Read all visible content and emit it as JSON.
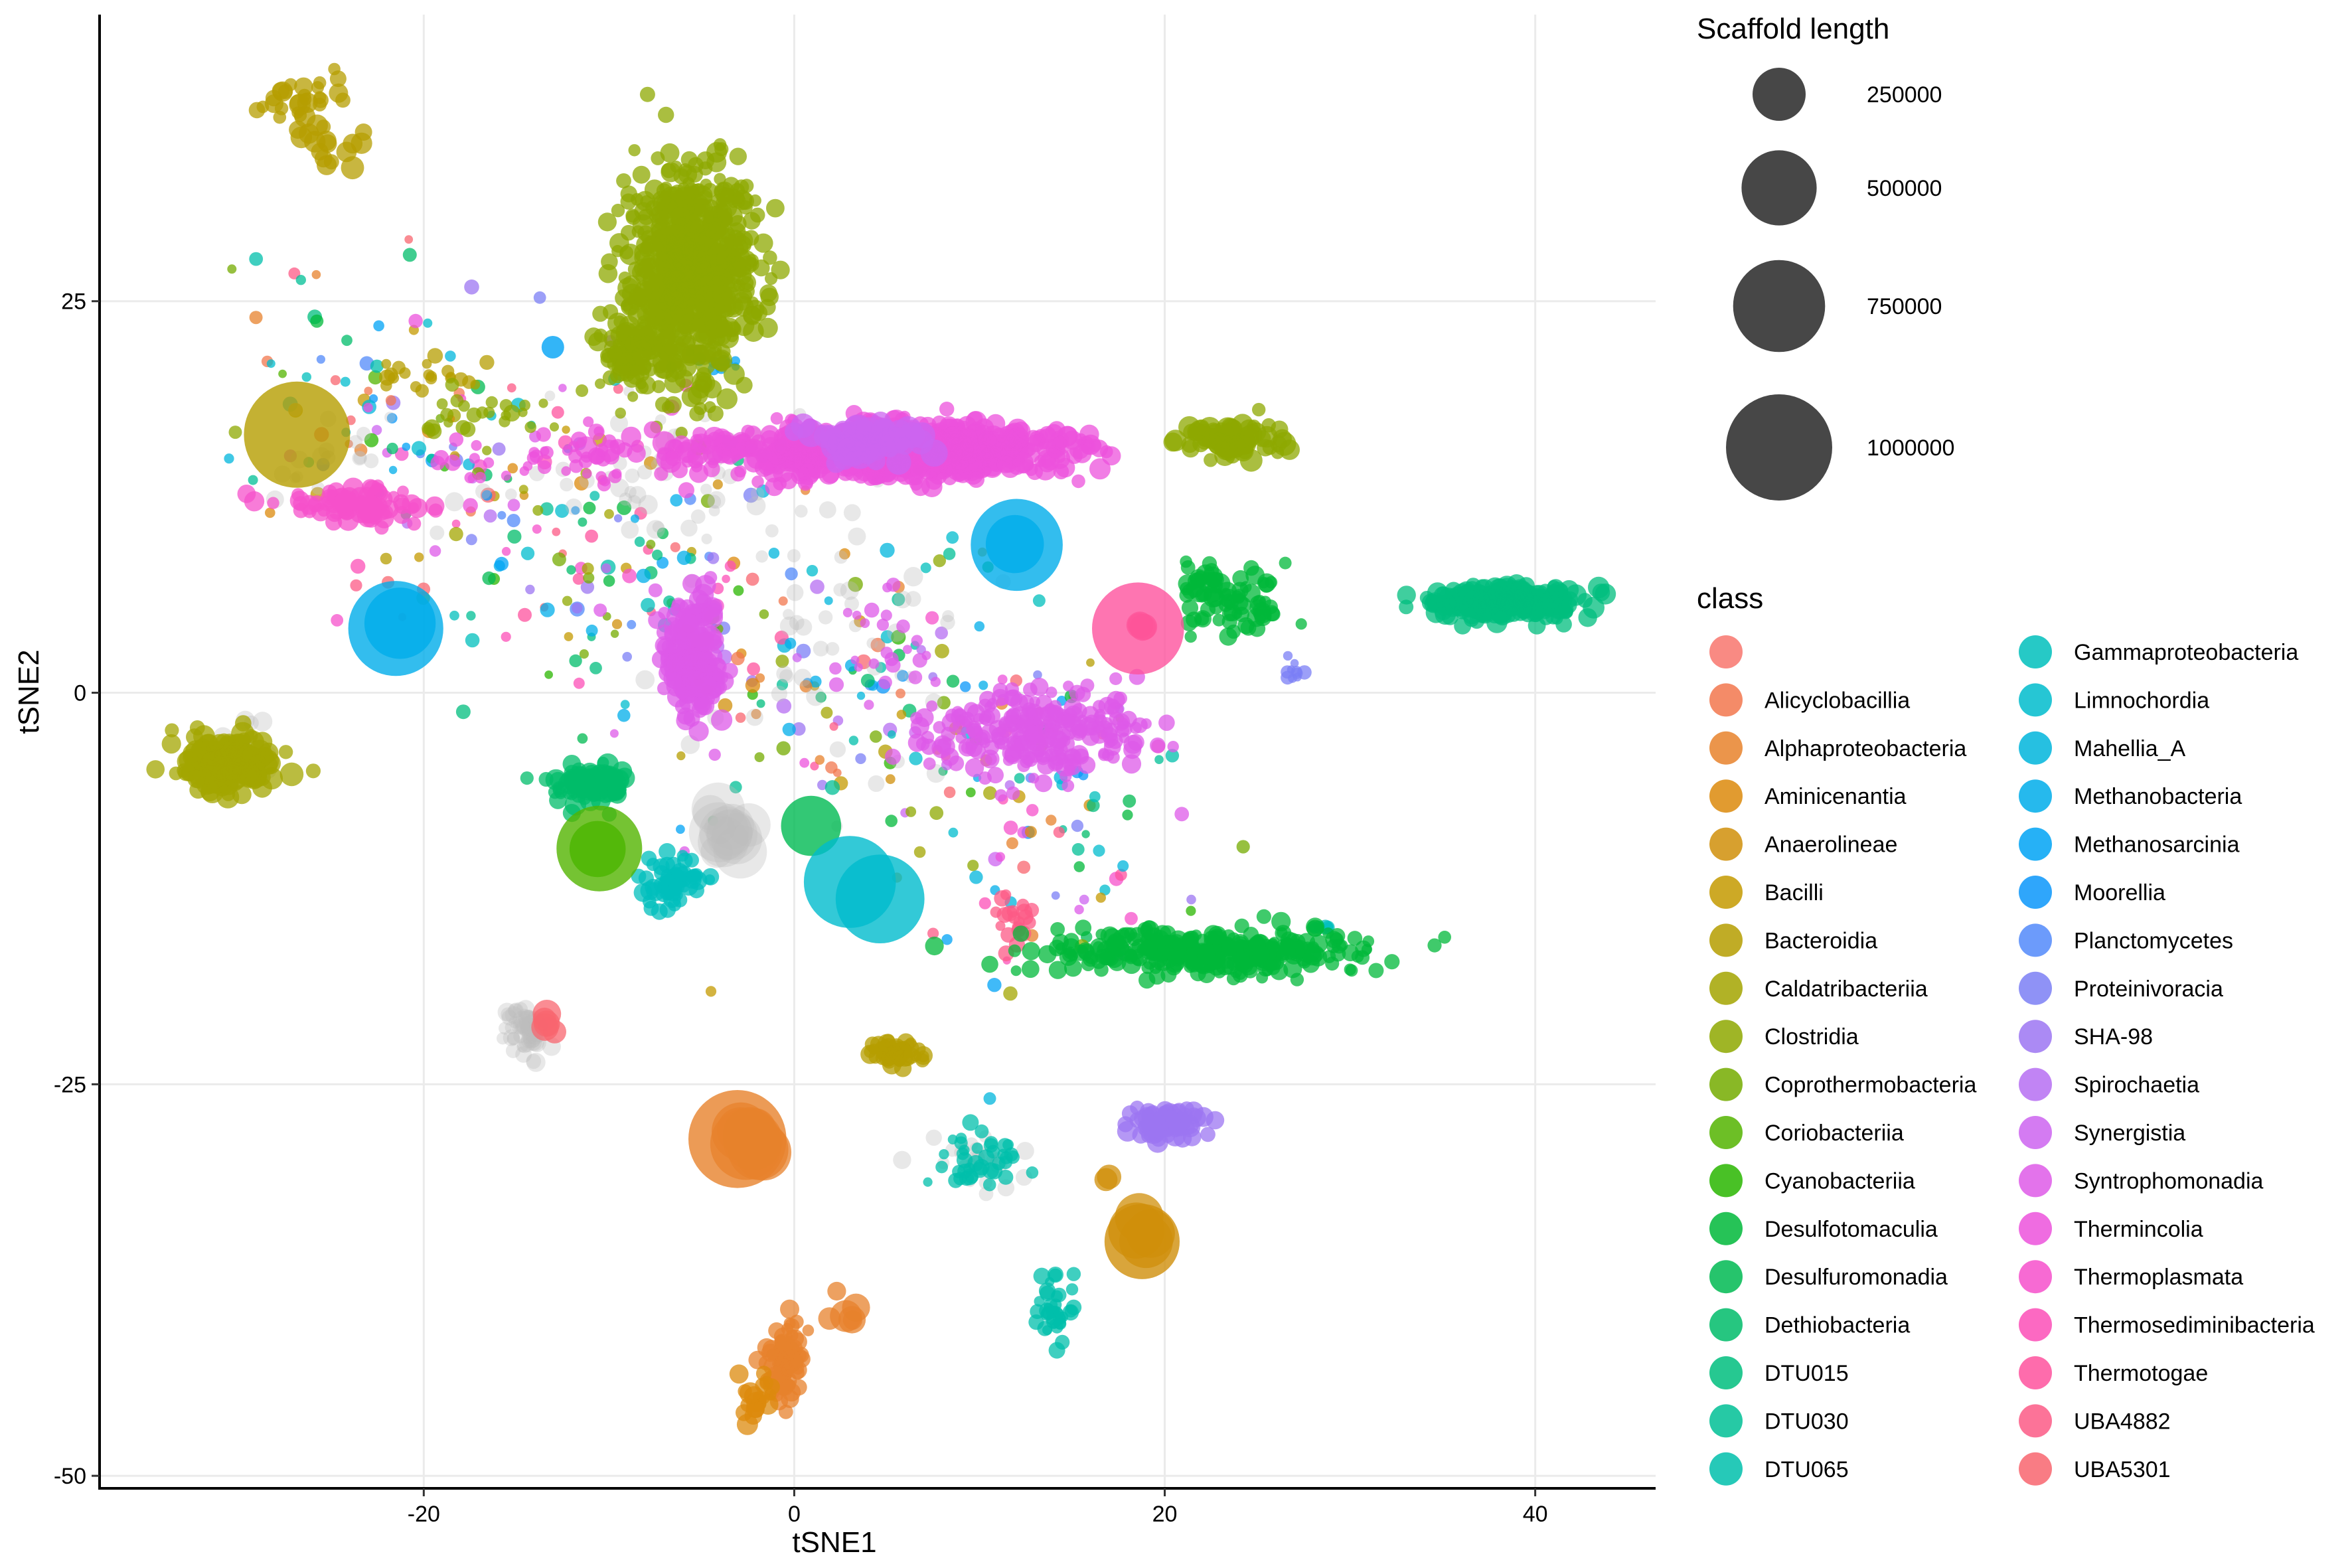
{
  "chart_data": {
    "type": "scatter",
    "xlabel": "tSNE1",
    "ylabel": "tSNE2",
    "xlim": [
      -37.5,
      46.5
    ],
    "ylim": [
      -50.8,
      43.3
    ],
    "x_ticks": [
      -20,
      0,
      20,
      40
    ],
    "x_tick_labels": [
      "-20",
      "0",
      "20",
      "40"
    ],
    "y_ticks": [
      -50,
      -25,
      0,
      25
    ],
    "y_tick_labels": [
      "-50",
      "-25",
      "0",
      "25"
    ],
    "grid": true,
    "size_legend": {
      "title": "Scaffold length",
      "values": [
        250000,
        500000,
        750000,
        1000000
      ],
      "labels": [
        "250000",
        "500000",
        "750000",
        "1000000"
      ]
    },
    "color_legend": {
      "title": "class",
      "classes": [
        {
          "label": "",
          "color": "#F8766D"
        },
        {
          "label": "Alicyclobacillia",
          "color": "#F2774D"
        },
        {
          "label": "Alphaproteobacteria",
          "color": "#E7822C"
        },
        {
          "label": "Aminicenantia",
          "color": "#DC8A0C"
        },
        {
          "label": "Anaerolineae",
          "color": "#D08F0A"
        },
        {
          "label": "Bacilli",
          "color": "#C49A00"
        },
        {
          "label": "Bacteroidia",
          "color": "#B59E00"
        },
        {
          "label": "Caldatribacteriia",
          "color": "#A3A500"
        },
        {
          "label": "Clostridia",
          "color": "#8EA800"
        },
        {
          "label": "Coprothermobacteria",
          "color": "#74AB00"
        },
        {
          "label": "Coriobacteriia",
          "color": "#53B400"
        },
        {
          "label": "Cyanobacteriia",
          "color": "#29B600"
        },
        {
          "label": "Desulfotomaculia",
          "color": "#00B83A"
        },
        {
          "label": "Desulfuromonadia",
          "color": "#00BA52"
        },
        {
          "label": "Dethiobacteria",
          "color": "#00BC6A"
        },
        {
          "label": "DTU015",
          "color": "#00BE7E"
        },
        {
          "label": "DTU030",
          "color": "#00BF95"
        },
        {
          "label": "DTU065",
          "color": "#00BFAB"
        },
        {
          "label": "Gammaproteobacteria",
          "color": "#00BFBC"
        },
        {
          "label": "Limnochordia",
          "color": "#00BCCD"
        },
        {
          "label": "Mahellia_A",
          "color": "#00B5DC"
        },
        {
          "label": "Methanobacteria",
          "color": "#00ADEA"
        },
        {
          "label": "Methanosarcinia",
          "color": "#00A3F5"
        },
        {
          "label": "Moorellia",
          "color": "#0A97FA"
        },
        {
          "label": "Planctomycetes",
          "color": "#5289FA"
        },
        {
          "label": "Proteinivoracia",
          "color": "#7B7FF5"
        },
        {
          "label": "SHA-98",
          "color": "#9C76F2"
        },
        {
          "label": "Spirochaetia",
          "color": "#B66EF2"
        },
        {
          "label": "Synergistia",
          "color": "#CC64F0"
        },
        {
          "label": "Syntrophomonadia",
          "color": "#DE5AE8"
        },
        {
          "label": "Thermincolia",
          "color": "#EC52DC"
        },
        {
          "label": "Thermoplasmata",
          "color": "#F650CB"
        },
        {
          "label": "Thermosediminibacteria",
          "color": "#FC4FB7"
        },
        {
          "label": "Thermotogae",
          "color": "#FE529E"
        },
        {
          "label": "UBA4882",
          "color": "#FC5A86"
        },
        {
          "label": "UBA5301",
          "color": "#F8656F"
        }
      ]
    },
    "clusters": [
      {
        "class": "Bacteroidia",
        "x": -26.5,
        "y": 37.5,
        "sx": 1.2,
        "sy": 1.4,
        "n": 30,
        "size": 25000
      },
      {
        "class": "Bacteroidia",
        "x": -25.0,
        "y": 35.0,
        "sx": 1.0,
        "sy": 0.8,
        "n": 15,
        "size": 30000
      },
      {
        "class": "Bacteroidia",
        "x": -27.0,
        "y": 16.5,
        "sx": 0.1,
        "sy": 0.1,
        "n": 1,
        "size": 1000000
      },
      {
        "class": "Bacteroidia",
        "x": -20.0,
        "y": 20.5,
        "sx": 1.5,
        "sy": 0.6,
        "n": 20,
        "size": 15000
      },
      {
        "class": "Clostridia",
        "x": -5.5,
        "y": 27.0,
        "sx": 1.6,
        "sy": 3.3,
        "n": 700,
        "size": 25000
      },
      {
        "class": "Clostridia",
        "x": -8.5,
        "y": 21.5,
        "sx": 1.0,
        "sy": 1.2,
        "n": 120,
        "size": 20000
      },
      {
        "class": "Clostridia",
        "x": -17.0,
        "y": 17.5,
        "sx": 2.5,
        "sy": 1.0,
        "n": 25,
        "size": 15000
      },
      {
        "class": "Clostridia",
        "x": 23.5,
        "y": 16.0,
        "sx": 1.6,
        "sy": 0.6,
        "n": 80,
        "size": 30000
      },
      {
        "class": "Caldatribacteriia",
        "x": -30.5,
        "y": -4.5,
        "sx": 1.2,
        "sy": 0.9,
        "n": 200,
        "size": 30000
      },
      {
        "class": "Thermincolia",
        "x": 6.0,
        "y": 15.5,
        "sx": 4.0,
        "sy": 0.8,
        "n": 900,
        "size": 25000
      },
      {
        "class": "Thermincolia",
        "x": -1.0,
        "y": 15.5,
        "sx": 4.0,
        "sy": 0.5,
        "n": 80,
        "size": 30000
      },
      {
        "class": "Thermincolia",
        "x": -10.0,
        "y": 15.0,
        "sx": 4.0,
        "sy": 1.0,
        "n": 60,
        "size": 15000
      },
      {
        "class": "Thermoplasmata",
        "x": -24.0,
        "y": 12.0,
        "sx": 2.0,
        "sy": 0.5,
        "n": 80,
        "size": 25000
      },
      {
        "class": "Syntrophomonadia",
        "x": -5.5,
        "y": 2.5,
        "sx": 0.8,
        "sy": 2.0,
        "n": 220,
        "size": 25000
      },
      {
        "class": "Syntrophomonadia",
        "x": 13.0,
        "y": -2.5,
        "sx": 3.0,
        "sy": 1.4,
        "n": 250,
        "size": 20000
      },
      {
        "class": "Syntrophomonadia",
        "x": 5.0,
        "y": 3.5,
        "sx": 1.6,
        "sy": 2.0,
        "n": 25,
        "size": 12000
      },
      {
        "class": "Methanobacteria",
        "x": -21.5,
        "y": 4.0,
        "sx": 0.15,
        "sy": 0.15,
        "n": 1,
        "size": 800000
      },
      {
        "class": "Methanobacteria",
        "x": -21.2,
        "y": 4.5,
        "sx": 0.1,
        "sy": 0.1,
        "n": 1,
        "size": 450000
      },
      {
        "class": "Methanobacteria",
        "x": 12.0,
        "y": 9.5,
        "sx": 0.1,
        "sy": 0.1,
        "n": 1,
        "size": 750000
      },
      {
        "class": "Methanobacteria",
        "x": 12.0,
        "y": 9.5,
        "sx": 0.1,
        "sy": 0.1,
        "n": 1,
        "size": 300000
      },
      {
        "class": "Thermotogae",
        "x": 18.5,
        "y": 4.0,
        "sx": 0.1,
        "sy": 0.1,
        "n": 1,
        "size": 750000
      },
      {
        "class": "UBA4882",
        "x": 18.8,
        "y": 4.5,
        "sx": 0.2,
        "sy": 0.3,
        "n": 4,
        "size": 80000
      },
      {
        "class": "DTU015",
        "x": 38.5,
        "y": 5.8,
        "sx": 1.8,
        "sy": 0.5,
        "n": 300,
        "size": 25000
      },
      {
        "class": "Desulfotomaculia",
        "x": 24.0,
        "y": 5.5,
        "sx": 1.4,
        "sy": 1.0,
        "n": 60,
        "size": 20000
      },
      {
        "class": "Dethiobacteria",
        "x": -11.0,
        "y": -6.0,
        "sx": 1.0,
        "sy": 0.6,
        "n": 100,
        "size": 25000
      },
      {
        "class": "Coriobacteriia",
        "x": -10.5,
        "y": -10.0,
        "sx": 0.1,
        "sy": 0.1,
        "n": 1,
        "size": 650000
      },
      {
        "class": "Cyanobacteriia",
        "x": -10.5,
        "y": -10.0,
        "sx": 0.1,
        "sy": 0.1,
        "n": 1,
        "size": 280000
      },
      {
        "class": "Desulfuromonadia",
        "x": 1.0,
        "y": -8.5,
        "sx": 0.1,
        "sy": 0.1,
        "n": 1,
        "size": 320000
      },
      {
        "class": "Limnochordia",
        "x": 3.0,
        "y": -12.0,
        "sx": 0.1,
        "sy": 0.1,
        "n": 1,
        "size": 750000
      },
      {
        "class": "Limnochordia",
        "x": 4.5,
        "y": -13.0,
        "sx": 0.1,
        "sy": 0.1,
        "n": 1,
        "size": 700000
      },
      {
        "class": "Gammaproteobacteria",
        "x": -6.5,
        "y": -12.0,
        "sx": 1.0,
        "sy": 0.8,
        "n": 60,
        "size": 20000
      },
      {
        "class": "Desulfotomaculia",
        "x": 22.0,
        "y": -16.5,
        "sx": 4.5,
        "sy": 0.7,
        "n": 350,
        "size": 20000
      },
      {
        "class": "UBA5301",
        "x": -13.5,
        "y": -21.0,
        "sx": 0.15,
        "sy": 0.4,
        "n": 6,
        "size": 50000
      },
      {
        "class": "Alphaproteobacteria",
        "x": -3.0,
        "y": -28.5,
        "sx": 0.1,
        "sy": 0.1,
        "n": 1,
        "size": 850000
      },
      {
        "class": "Alphaproteobacteria",
        "x": -2.5,
        "y": -28.0,
        "sx": 0.5,
        "sy": 0.8,
        "n": 8,
        "size": 300000
      },
      {
        "class": "Alphaproteobacteria",
        "x": -0.5,
        "y": -43.0,
        "sx": 0.6,
        "sy": 1.2,
        "n": 80,
        "size": 20000
      },
      {
        "class": "Alphaproteobacteria",
        "x": 2.5,
        "y": -39.5,
        "sx": 0.4,
        "sy": 0.6,
        "n": 6,
        "size": 60000
      },
      {
        "class": "Bacteroidia",
        "x": 5.5,
        "y": -23.0,
        "sx": 0.7,
        "sy": 0.4,
        "n": 60,
        "size": 20000
      },
      {
        "class": "Anaerolineae",
        "x": 18.8,
        "y": -35.0,
        "sx": 0.1,
        "sy": 0.1,
        "n": 1,
        "size": 500000
      },
      {
        "class": "Anaerolineae",
        "x": 18.5,
        "y": -34.0,
        "sx": 0.3,
        "sy": 0.6,
        "n": 4,
        "size": 250000
      },
      {
        "class": "Anaerolineae",
        "x": 17.0,
        "y": -31.0,
        "sx": 0.2,
        "sy": 0.2,
        "n": 2,
        "size": 50000
      },
      {
        "class": "SHA-98",
        "x": 20.0,
        "y": -27.5,
        "sx": 1.0,
        "sy": 0.5,
        "n": 70,
        "size": 25000
      },
      {
        "class": "DTU065",
        "x": 10.0,
        "y": -29.5,
        "sx": 1.2,
        "sy": 1.0,
        "n": 40,
        "size": 15000
      },
      {
        "class": "DTU065",
        "x": 14.0,
        "y": -39.5,
        "sx": 0.6,
        "sy": 1.0,
        "n": 40,
        "size": 15000
      },
      {
        "class": "UBA4882",
        "x": 12.0,
        "y": -14.5,
        "sx": 0.5,
        "sy": 0.8,
        "n": 20,
        "size": 15000
      },
      {
        "class": "Proteinivoracia",
        "x": 27.0,
        "y": 1.5,
        "sx": 0.4,
        "sy": 0.4,
        "n": 10,
        "size": 12000
      },
      {
        "class": "Methanosarcinia",
        "x": -4.5,
        "y": 21.0,
        "sx": 1.0,
        "sy": 0.4,
        "n": 10,
        "size": 10000
      },
      {
        "class": "Methanosarcinia",
        "x": -13.0,
        "y": 22.0,
        "sx": 0.1,
        "sy": 0.1,
        "n": 1,
        "size": 45000
      },
      {
        "class": "Synergistia",
        "x": 4.0,
        "y": 16.0,
        "sx": 2.0,
        "sy": 0.6,
        "n": 60,
        "size": 50000
      },
      {
        "class": "Aminicenantia",
        "x": -2.0,
        "y": -45.0,
        "sx": 0.5,
        "sy": 0.8,
        "n": 20,
        "size": 25000
      },
      {
        "class": "Gammaproteobacteria",
        "x": 28.5,
        "y": -15.0,
        "sx": 0.4,
        "sy": 0.2,
        "n": 8,
        "size": 15000
      },
      {
        "class": "Desulfotomaculia",
        "x": 22.0,
        "y": 7.0,
        "sx": 0.6,
        "sy": 0.4,
        "n": 20,
        "size": 25000
      }
    ],
    "unclassified_clusters": [
      {
        "x": -4.0,
        "y": -9.0,
        "sx": 0.1,
        "sy": 0.1,
        "n": 1,
        "size": 600000
      },
      {
        "x": -4.0,
        "y": -9.0,
        "sx": 0.8,
        "sy": 0.8,
        "n": 12,
        "size": 150000
      },
      {
        "x": -14.5,
        "y": -21.5,
        "sx": 0.6,
        "sy": 0.8,
        "n": 60,
        "size": 20000
      },
      {
        "x": -6.0,
        "y": 14.0,
        "sx": 6.0,
        "sy": 3.0,
        "n": 70,
        "size": 20000
      },
      {
        "x": 3.0,
        "y": 2.0,
        "sx": 4.0,
        "sy": 4.0,
        "n": 40,
        "size": 20000
      },
      {
        "x": 10.0,
        "y": -30.0,
        "sx": 1.5,
        "sy": 1.0,
        "n": 25,
        "size": 20000
      },
      {
        "x": -25.0,
        "y": 15.0,
        "sx": 2.0,
        "sy": 2.0,
        "n": 20,
        "size": 20000
      },
      {
        "x": -30.0,
        "y": -3.0,
        "sx": 1.0,
        "sy": 1.0,
        "n": 10,
        "size": 25000
      }
    ],
    "scattered_points": {
      "n": 450,
      "size": 12000
    }
  }
}
